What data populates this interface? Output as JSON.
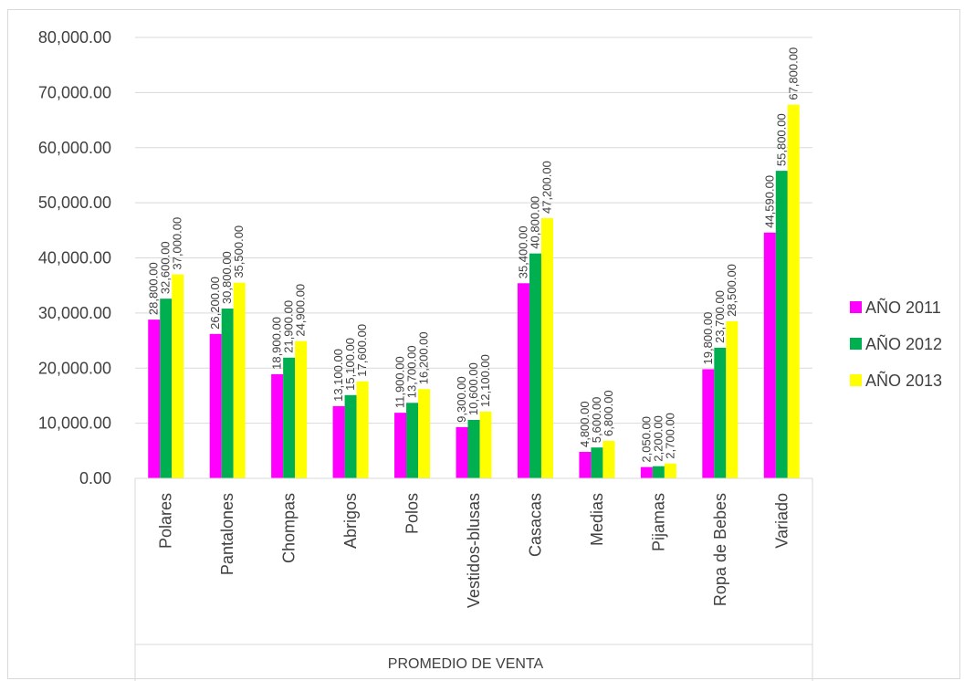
{
  "chart_data": {
    "type": "bar",
    "title": "",
    "xlabel": "PROMEDIO DE VENTA",
    "ylabel": "",
    "ylim": [
      0,
      80000
    ],
    "ytick_labels": [
      "0.00",
      "10,000.00",
      "20,000.00",
      "30,000.00",
      "40,000.00",
      "50,000.00",
      "60,000.00",
      "70,000.00",
      "80,000.00"
    ],
    "grid": true,
    "legend_position": "right",
    "categories": [
      "Polares",
      "Pantalones",
      "Chompas",
      "Abrigos",
      "Polos",
      "Vestidos-blusas",
      "Casacas",
      "Medias",
      "Pijamas",
      "Ropa de Bebes",
      "Variado"
    ],
    "series": [
      {
        "name": "AÑO 2011",
        "color": "#ff00ff",
        "values": [
          28800,
          26200,
          18900,
          13100,
          11900,
          9300,
          35400,
          4800,
          2050,
          19800,
          44590
        ],
        "labels": [
          "28,800.00",
          "26,200.00",
          "18,900.00",
          "13,100.00",
          "11,900.00",
          "9,300.00",
          "35,400.00",
          "4,800.00",
          "2,050.00",
          "19,800.00",
          "44,590.00"
        ]
      },
      {
        "name": "AÑO 2012",
        "color": "#00b050",
        "values": [
          32600,
          30800,
          21900,
          15100,
          13700,
          10600,
          40800,
          5600,
          2200,
          23700,
          55800
        ],
        "labels": [
          "32,600.00",
          "30,800.00",
          "21,900.00",
          "15,100.00",
          "13,700.00",
          "10,600.00",
          "40,800.00",
          "5,600.00",
          "2,200.00",
          "23,700.00",
          "55,800.00"
        ]
      },
      {
        "name": "AÑO 2013",
        "color": "#ffff00",
        "values": [
          37000,
          35500,
          24900,
          17600,
          16200,
          12100,
          47200,
          6800,
          2700,
          28500,
          67800
        ],
        "labels": [
          "37,000.00",
          "35,500.00",
          "24,900.00",
          "17,600.00",
          "16,200.00",
          "12,100.00",
          "47,200.00",
          "6,800.00",
          "2,700.00",
          "28,500.00",
          "67,800.00"
        ]
      }
    ]
  }
}
